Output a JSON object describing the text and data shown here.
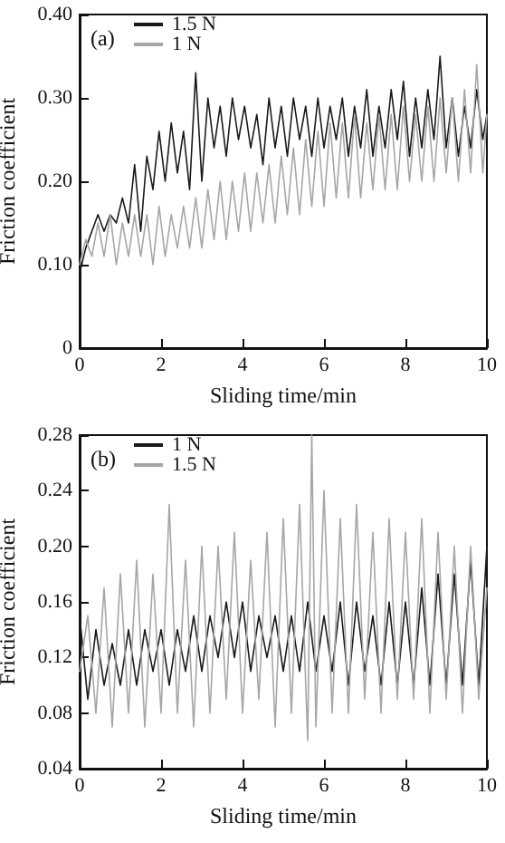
{
  "chart_data": [
    {
      "type": "line",
      "title": "(a)",
      "xlabel": "Sliding time/min",
      "ylabel": "Friction coefficient",
      "xlim": [
        0,
        10
      ],
      "xticks": [
        0,
        2,
        4,
        6,
        8,
        10
      ],
      "ylim": [
        0,
        0.4
      ],
      "yticks": [
        0,
        {
          "value": 0.1,
          "label": "0.10"
        },
        {
          "value": 0.2,
          "label": "0.20"
        },
        {
          "value": 0.3,
          "label": "0.30"
        },
        {
          "value": 0.4,
          "label": "0.40"
        }
      ],
      "grid": false,
      "legend": "top left",
      "marker": "none",
      "line_style": "solid",
      "series": [
        {
          "name": "1.5 N",
          "color": "#1a1a1a",
          "x": [
            0,
            0.15,
            0.3,
            0.45,
            0.6,
            0.75,
            0.9,
            1.05,
            1.2,
            1.35,
            1.5,
            1.65,
            1.8,
            1.95,
            2.1,
            2.25,
            2.4,
            2.55,
            2.7,
            2.85,
            3.0,
            3.15,
            3.3,
            3.45,
            3.6,
            3.75,
            3.9,
            4.05,
            4.2,
            4.35,
            4.5,
            4.65,
            4.8,
            4.95,
            5.1,
            5.25,
            5.4,
            5.55,
            5.7,
            5.85,
            6.0,
            6.15,
            6.3,
            6.45,
            6.6,
            6.75,
            6.9,
            7.05,
            7.2,
            7.35,
            7.5,
            7.65,
            7.8,
            7.95,
            8.1,
            8.25,
            8.4,
            8.55,
            8.7,
            8.85,
            9.0,
            9.15,
            9.3,
            9.45,
            9.6,
            9.75,
            9.9,
            10
          ],
          "values": [
            0.09,
            0.12,
            0.14,
            0.16,
            0.14,
            0.16,
            0.15,
            0.18,
            0.15,
            0.22,
            0.14,
            0.23,
            0.19,
            0.26,
            0.2,
            0.27,
            0.21,
            0.26,
            0.19,
            0.33,
            0.2,
            0.3,
            0.24,
            0.29,
            0.23,
            0.3,
            0.25,
            0.29,
            0.24,
            0.28,
            0.22,
            0.3,
            0.24,
            0.29,
            0.23,
            0.3,
            0.25,
            0.29,
            0.23,
            0.3,
            0.24,
            0.29,
            0.25,
            0.3,
            0.23,
            0.29,
            0.24,
            0.31,
            0.23,
            0.29,
            0.24,
            0.31,
            0.25,
            0.32,
            0.23,
            0.3,
            0.24,
            0.31,
            0.25,
            0.35,
            0.24,
            0.3,
            0.23,
            0.29,
            0.24,
            0.31,
            0.25,
            0.28
          ]
        },
        {
          "name": "1 N",
          "color": "#a6a6a6",
          "x": [
            0,
            0.15,
            0.3,
            0.45,
            0.6,
            0.75,
            0.9,
            1.05,
            1.2,
            1.35,
            1.5,
            1.65,
            1.8,
            1.95,
            2.1,
            2.25,
            2.4,
            2.55,
            2.7,
            2.85,
            3.0,
            3.15,
            3.3,
            3.45,
            3.6,
            3.75,
            3.9,
            4.05,
            4.2,
            4.35,
            4.5,
            4.65,
            4.8,
            4.95,
            5.1,
            5.25,
            5.4,
            5.55,
            5.7,
            5.85,
            6.0,
            6.15,
            6.3,
            6.45,
            6.6,
            6.75,
            6.9,
            7.05,
            7.2,
            7.35,
            7.5,
            7.65,
            7.8,
            7.95,
            8.1,
            8.25,
            8.4,
            8.55,
            8.7,
            8.85,
            9.0,
            9.15,
            9.3,
            9.45,
            9.6,
            9.75,
            9.9,
            10
          ],
          "values": [
            0.1,
            0.13,
            0.11,
            0.15,
            0.11,
            0.16,
            0.1,
            0.15,
            0.11,
            0.16,
            0.11,
            0.16,
            0.1,
            0.17,
            0.11,
            0.16,
            0.12,
            0.17,
            0.12,
            0.18,
            0.12,
            0.19,
            0.13,
            0.2,
            0.13,
            0.2,
            0.14,
            0.21,
            0.14,
            0.21,
            0.15,
            0.22,
            0.15,
            0.23,
            0.16,
            0.24,
            0.16,
            0.25,
            0.17,
            0.26,
            0.17,
            0.27,
            0.18,
            0.27,
            0.18,
            0.28,
            0.18,
            0.27,
            0.19,
            0.28,
            0.19,
            0.28,
            0.19,
            0.29,
            0.2,
            0.28,
            0.2,
            0.29,
            0.2,
            0.3,
            0.21,
            0.3,
            0.2,
            0.31,
            0.21,
            0.34,
            0.21,
            0.28
          ]
        }
      ]
    },
    {
      "type": "line",
      "title": "(b)",
      "xlabel": "Sliding time/min",
      "ylabel": "Friction coefficient",
      "xlim": [
        0,
        10
      ],
      "xticks": [
        0,
        2,
        4,
        6,
        8,
        10
      ],
      "ylim": [
        0.04,
        0.28
      ],
      "yticks": [
        0.04,
        0.08,
        0.12,
        0.16,
        {
          "value": 0.2,
          "label": "0.20"
        },
        0.24,
        0.28
      ],
      "grid": false,
      "legend": "top left",
      "marker": "none",
      "line_style": "solid",
      "series": [
        {
          "name": "1 N",
          "color": "#1a1a1a",
          "x": [
            0,
            0.2,
            0.4,
            0.6,
            0.8,
            1.0,
            1.2,
            1.4,
            1.6,
            1.8,
            2.0,
            2.2,
            2.4,
            2.6,
            2.8,
            3.0,
            3.2,
            3.4,
            3.6,
            3.8,
            4.0,
            4.2,
            4.4,
            4.6,
            4.8,
            5.0,
            5.2,
            5.4,
            5.6,
            5.8,
            6.0,
            6.2,
            6.4,
            6.6,
            6.8,
            7.0,
            7.2,
            7.4,
            7.6,
            7.8,
            8.0,
            8.2,
            8.4,
            8.6,
            8.8,
            9.0,
            9.2,
            9.4,
            9.6,
            9.8,
            10
          ],
          "values": [
            0.15,
            0.09,
            0.14,
            0.1,
            0.13,
            0.1,
            0.14,
            0.1,
            0.14,
            0.11,
            0.14,
            0.1,
            0.14,
            0.11,
            0.15,
            0.11,
            0.15,
            0.12,
            0.16,
            0.12,
            0.16,
            0.11,
            0.15,
            0.12,
            0.15,
            0.11,
            0.15,
            0.11,
            0.16,
            0.11,
            0.15,
            0.11,
            0.16,
            0.1,
            0.16,
            0.11,
            0.15,
            0.1,
            0.16,
            0.1,
            0.16,
            0.1,
            0.17,
            0.1,
            0.18,
            0.1,
            0.18,
            0.1,
            0.19,
            0.1,
            0.2
          ]
        },
        {
          "name": "1.5 N",
          "color": "#a6a6a6",
          "x": [
            0,
            0.2,
            0.4,
            0.6,
            0.8,
            1.0,
            1.2,
            1.4,
            1.6,
            1.8,
            2.0,
            2.2,
            2.4,
            2.6,
            2.8,
            3.0,
            3.2,
            3.4,
            3.6,
            3.8,
            4.0,
            4.2,
            4.4,
            4.6,
            4.8,
            5.0,
            5.2,
            5.4,
            5.6,
            5.7,
            5.8,
            6.0,
            6.2,
            6.4,
            6.6,
            6.8,
            7.0,
            7.2,
            7.4,
            7.6,
            7.8,
            8.0,
            8.2,
            8.4,
            8.6,
            8.8,
            9.0,
            9.2,
            9.4,
            9.6,
            9.8,
            10
          ],
          "values": [
            0.11,
            0.15,
            0.08,
            0.17,
            0.07,
            0.18,
            0.08,
            0.19,
            0.07,
            0.18,
            0.08,
            0.23,
            0.08,
            0.19,
            0.07,
            0.2,
            0.08,
            0.2,
            0.09,
            0.21,
            0.08,
            0.19,
            0.09,
            0.21,
            0.07,
            0.22,
            0.08,
            0.23,
            0.06,
            0.28,
            0.07,
            0.24,
            0.08,
            0.22,
            0.08,
            0.23,
            0.09,
            0.21,
            0.08,
            0.22,
            0.09,
            0.21,
            0.09,
            0.22,
            0.08,
            0.21,
            0.09,
            0.2,
            0.08,
            0.2,
            0.09,
            0.17
          ]
        }
      ]
    }
  ]
}
